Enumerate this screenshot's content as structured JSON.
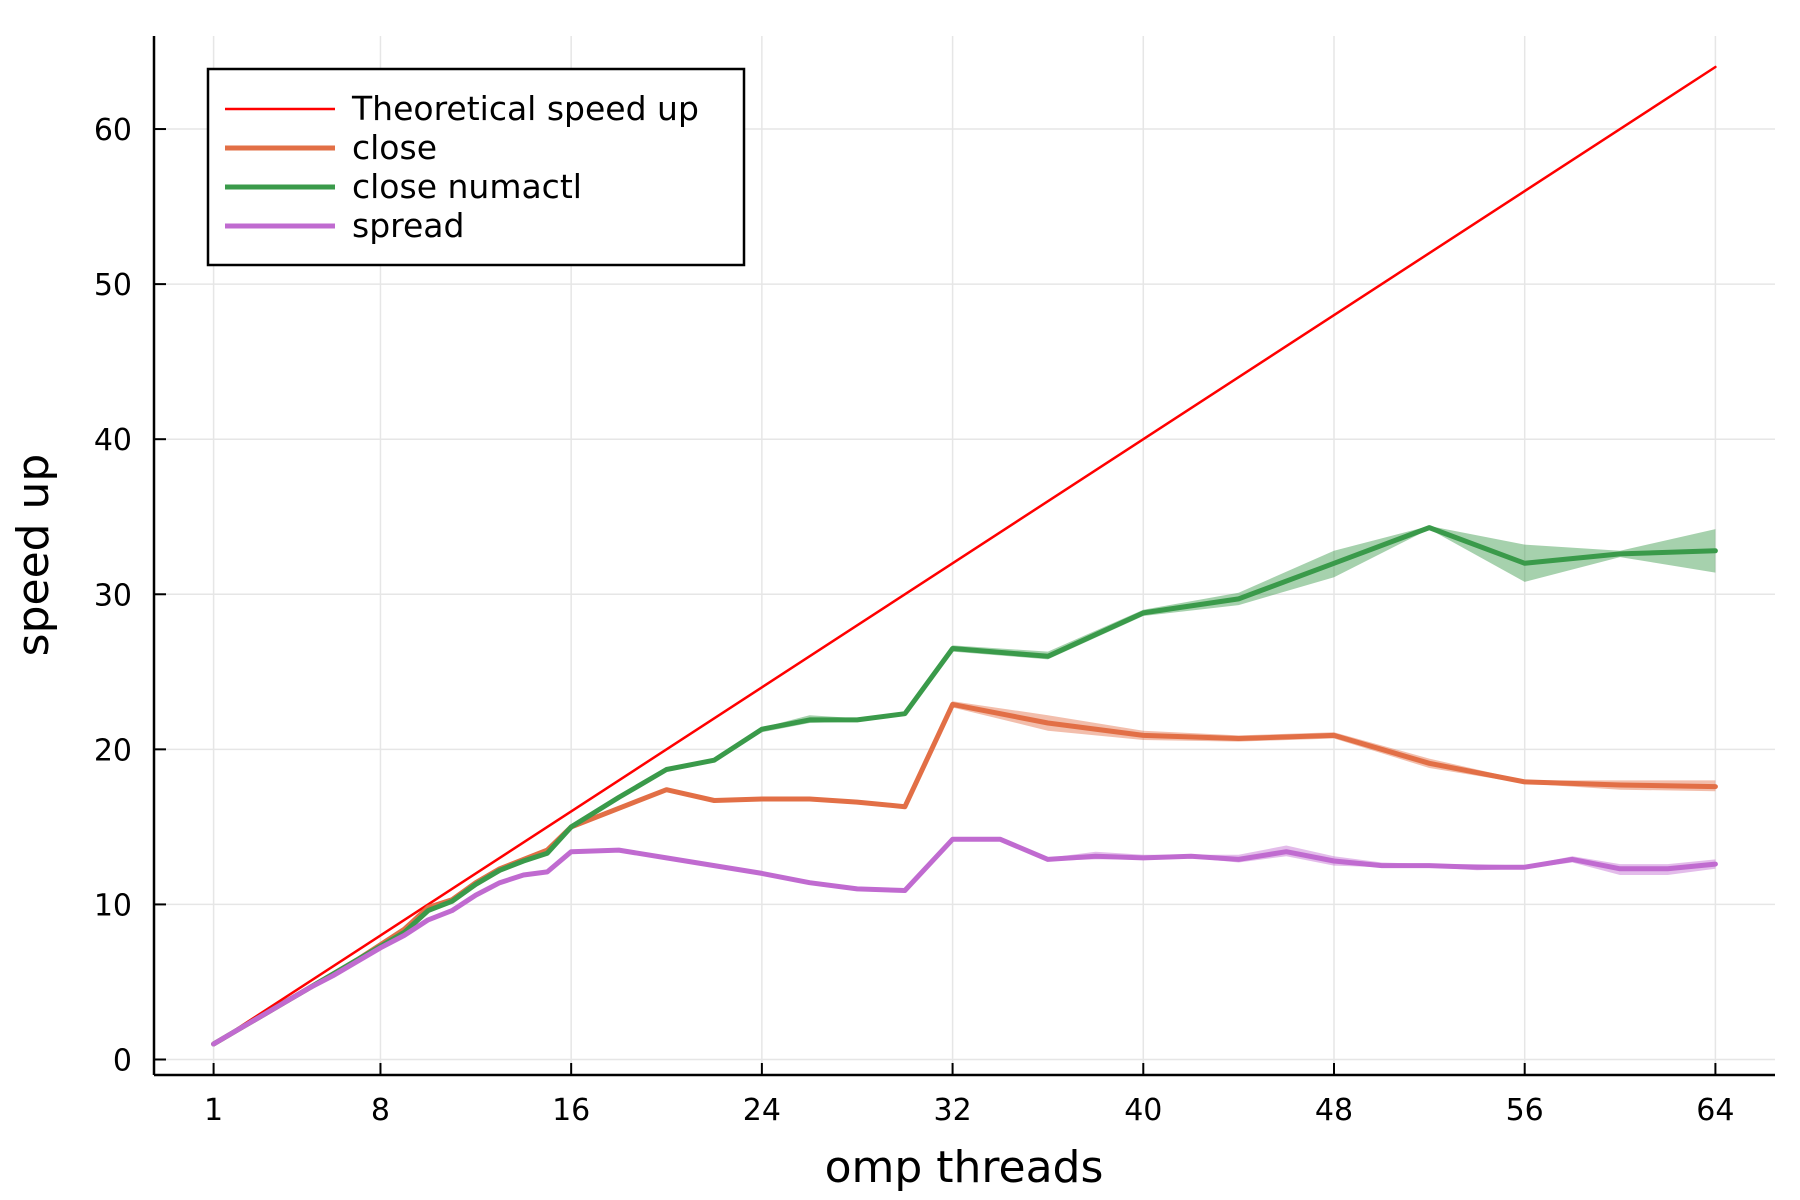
{
  "chart_data": {
    "type": "line",
    "title": "",
    "xlabel": "omp threads",
    "ylabel": "speed up",
    "xlim": [
      -1.5,
      66.5
    ],
    "ylim": [
      -1,
      66
    ],
    "xticks": [
      1,
      8,
      16,
      24,
      32,
      40,
      48,
      56,
      64
    ],
    "yticks": [
      0,
      10,
      20,
      30,
      40,
      50,
      60
    ],
    "grid": true,
    "legend_position": "top-left",
    "series": [
      {
        "name": "Theoretical speed up",
        "color": "#ff0000",
        "band": false,
        "x": [
          1,
          64
        ],
        "y": [
          1,
          64
        ]
      },
      {
        "name": "close",
        "color": "#e26f46",
        "band": true,
        "x": [
          1,
          2,
          3,
          4,
          5,
          6,
          7,
          8,
          9,
          10,
          11,
          12,
          13,
          14,
          15,
          16,
          18,
          20,
          22,
          24,
          26,
          28,
          30,
          32,
          36,
          40,
          44,
          48,
          52,
          56,
          60,
          64
        ],
        "y": [
          1.0,
          1.9,
          2.8,
          3.7,
          4.6,
          5.5,
          6.4,
          7.4,
          8.4,
          9.8,
          10.3,
          11.4,
          12.3,
          12.9,
          13.5,
          15.0,
          16.2,
          17.4,
          16.7,
          16.8,
          16.8,
          16.6,
          16.3,
          22.9,
          21.7,
          20.9,
          20.7,
          20.9,
          19.1,
          17.9,
          17.7,
          17.6
        ],
        "lower": [
          1.0,
          1.9,
          2.8,
          3.7,
          4.6,
          5.5,
          6.4,
          7.4,
          8.4,
          9.8,
          10.3,
          11.4,
          12.3,
          12.9,
          13.4,
          14.9,
          16.1,
          17.3,
          16.6,
          16.7,
          16.7,
          16.5,
          16.2,
          22.7,
          21.2,
          20.6,
          20.5,
          20.7,
          18.8,
          17.8,
          17.4,
          17.3
        ],
        "upper": [
          1.0,
          1.9,
          2.8,
          3.7,
          4.6,
          5.5,
          6.4,
          7.4,
          8.4,
          9.8,
          10.3,
          11.4,
          12.3,
          12.9,
          13.6,
          15.1,
          16.3,
          17.5,
          16.8,
          16.9,
          16.9,
          16.7,
          16.4,
          23.1,
          22.2,
          21.2,
          20.9,
          21.1,
          19.4,
          18.0,
          18.0,
          18.0
        ]
      },
      {
        "name": "close numactl",
        "color": "#3a9a4a",
        "band": true,
        "x": [
          1,
          2,
          3,
          4,
          5,
          6,
          7,
          8,
          9,
          10,
          11,
          12,
          13,
          14,
          15,
          16,
          18,
          20,
          22,
          24,
          26,
          28,
          30,
          32,
          36,
          40,
          44,
          48,
          52,
          56,
          60,
          64
        ],
        "y": [
          1.0,
          1.9,
          2.8,
          3.7,
          4.6,
          5.5,
          6.4,
          7.3,
          8.2,
          9.6,
          10.2,
          11.3,
          12.2,
          12.8,
          13.3,
          15.0,
          16.9,
          18.7,
          19.3,
          21.3,
          21.9,
          21.9,
          22.3,
          26.5,
          26.0,
          28.8,
          29.7,
          32.0,
          34.3,
          32.0,
          32.6,
          32.8
        ],
        "lower": [
          1.0,
          1.9,
          2.8,
          3.7,
          4.6,
          5.5,
          6.4,
          7.3,
          8.2,
          9.6,
          10.2,
          11.3,
          12.2,
          12.8,
          13.2,
          14.9,
          16.8,
          18.6,
          19.2,
          21.1,
          21.7,
          21.8,
          22.2,
          26.3,
          25.8,
          28.6,
          29.3,
          31.1,
          34.2,
          30.8,
          32.4,
          31.4
        ],
        "upper": [
          1.0,
          1.9,
          2.8,
          3.7,
          4.6,
          5.5,
          6.4,
          7.3,
          8.2,
          9.6,
          10.2,
          11.3,
          12.2,
          12.8,
          13.4,
          15.1,
          17.0,
          18.8,
          19.4,
          21.4,
          22.2,
          22.0,
          22.4,
          26.7,
          26.3,
          29.0,
          30.1,
          32.8,
          34.4,
          33.2,
          32.8,
          34.2
        ]
      },
      {
        "name": "spread",
        "color": "#c06bd0",
        "band": true,
        "x": [
          1,
          2,
          3,
          4,
          5,
          6,
          7,
          8,
          9,
          10,
          11,
          12,
          13,
          14,
          15,
          16,
          18,
          20,
          22,
          24,
          26,
          28,
          30,
          32,
          34,
          36,
          38,
          40,
          42,
          44,
          46,
          48,
          50,
          52,
          54,
          56,
          58,
          60,
          62,
          64
        ],
        "y": [
          1.0,
          1.9,
          2.8,
          3.7,
          4.6,
          5.4,
          6.3,
          7.2,
          8.0,
          9.0,
          9.6,
          10.6,
          11.4,
          11.9,
          12.1,
          13.4,
          13.5,
          13.0,
          12.5,
          12.0,
          11.4,
          11.0,
          10.9,
          14.2,
          14.2,
          12.9,
          13.1,
          13.0,
          13.1,
          12.9,
          13.4,
          12.8,
          12.5,
          12.5,
          12.4,
          12.4,
          12.9,
          12.3,
          12.3,
          12.6
        ],
        "lower": [
          1.0,
          1.9,
          2.8,
          3.7,
          4.6,
          5.4,
          6.3,
          7.2,
          8.0,
          9.0,
          9.6,
          10.6,
          11.4,
          11.9,
          12.1,
          13.3,
          13.4,
          12.9,
          12.4,
          11.9,
          11.3,
          10.9,
          10.8,
          14.1,
          14.1,
          12.8,
          12.9,
          12.9,
          13.0,
          12.7,
          13.1,
          12.5,
          12.4,
          12.4,
          12.2,
          12.3,
          12.7,
          11.9,
          11.9,
          12.3
        ],
        "upper": [
          1.0,
          1.9,
          2.8,
          3.7,
          4.6,
          5.4,
          6.3,
          7.2,
          8.0,
          9.0,
          9.6,
          10.6,
          11.4,
          11.9,
          12.1,
          13.5,
          13.6,
          13.1,
          12.6,
          12.1,
          11.5,
          11.1,
          11.0,
          14.3,
          14.3,
          13.0,
          13.4,
          13.2,
          13.2,
          13.2,
          13.8,
          13.1,
          12.7,
          12.6,
          12.6,
          12.5,
          13.1,
          12.6,
          12.6,
          12.9
        ]
      }
    ]
  }
}
